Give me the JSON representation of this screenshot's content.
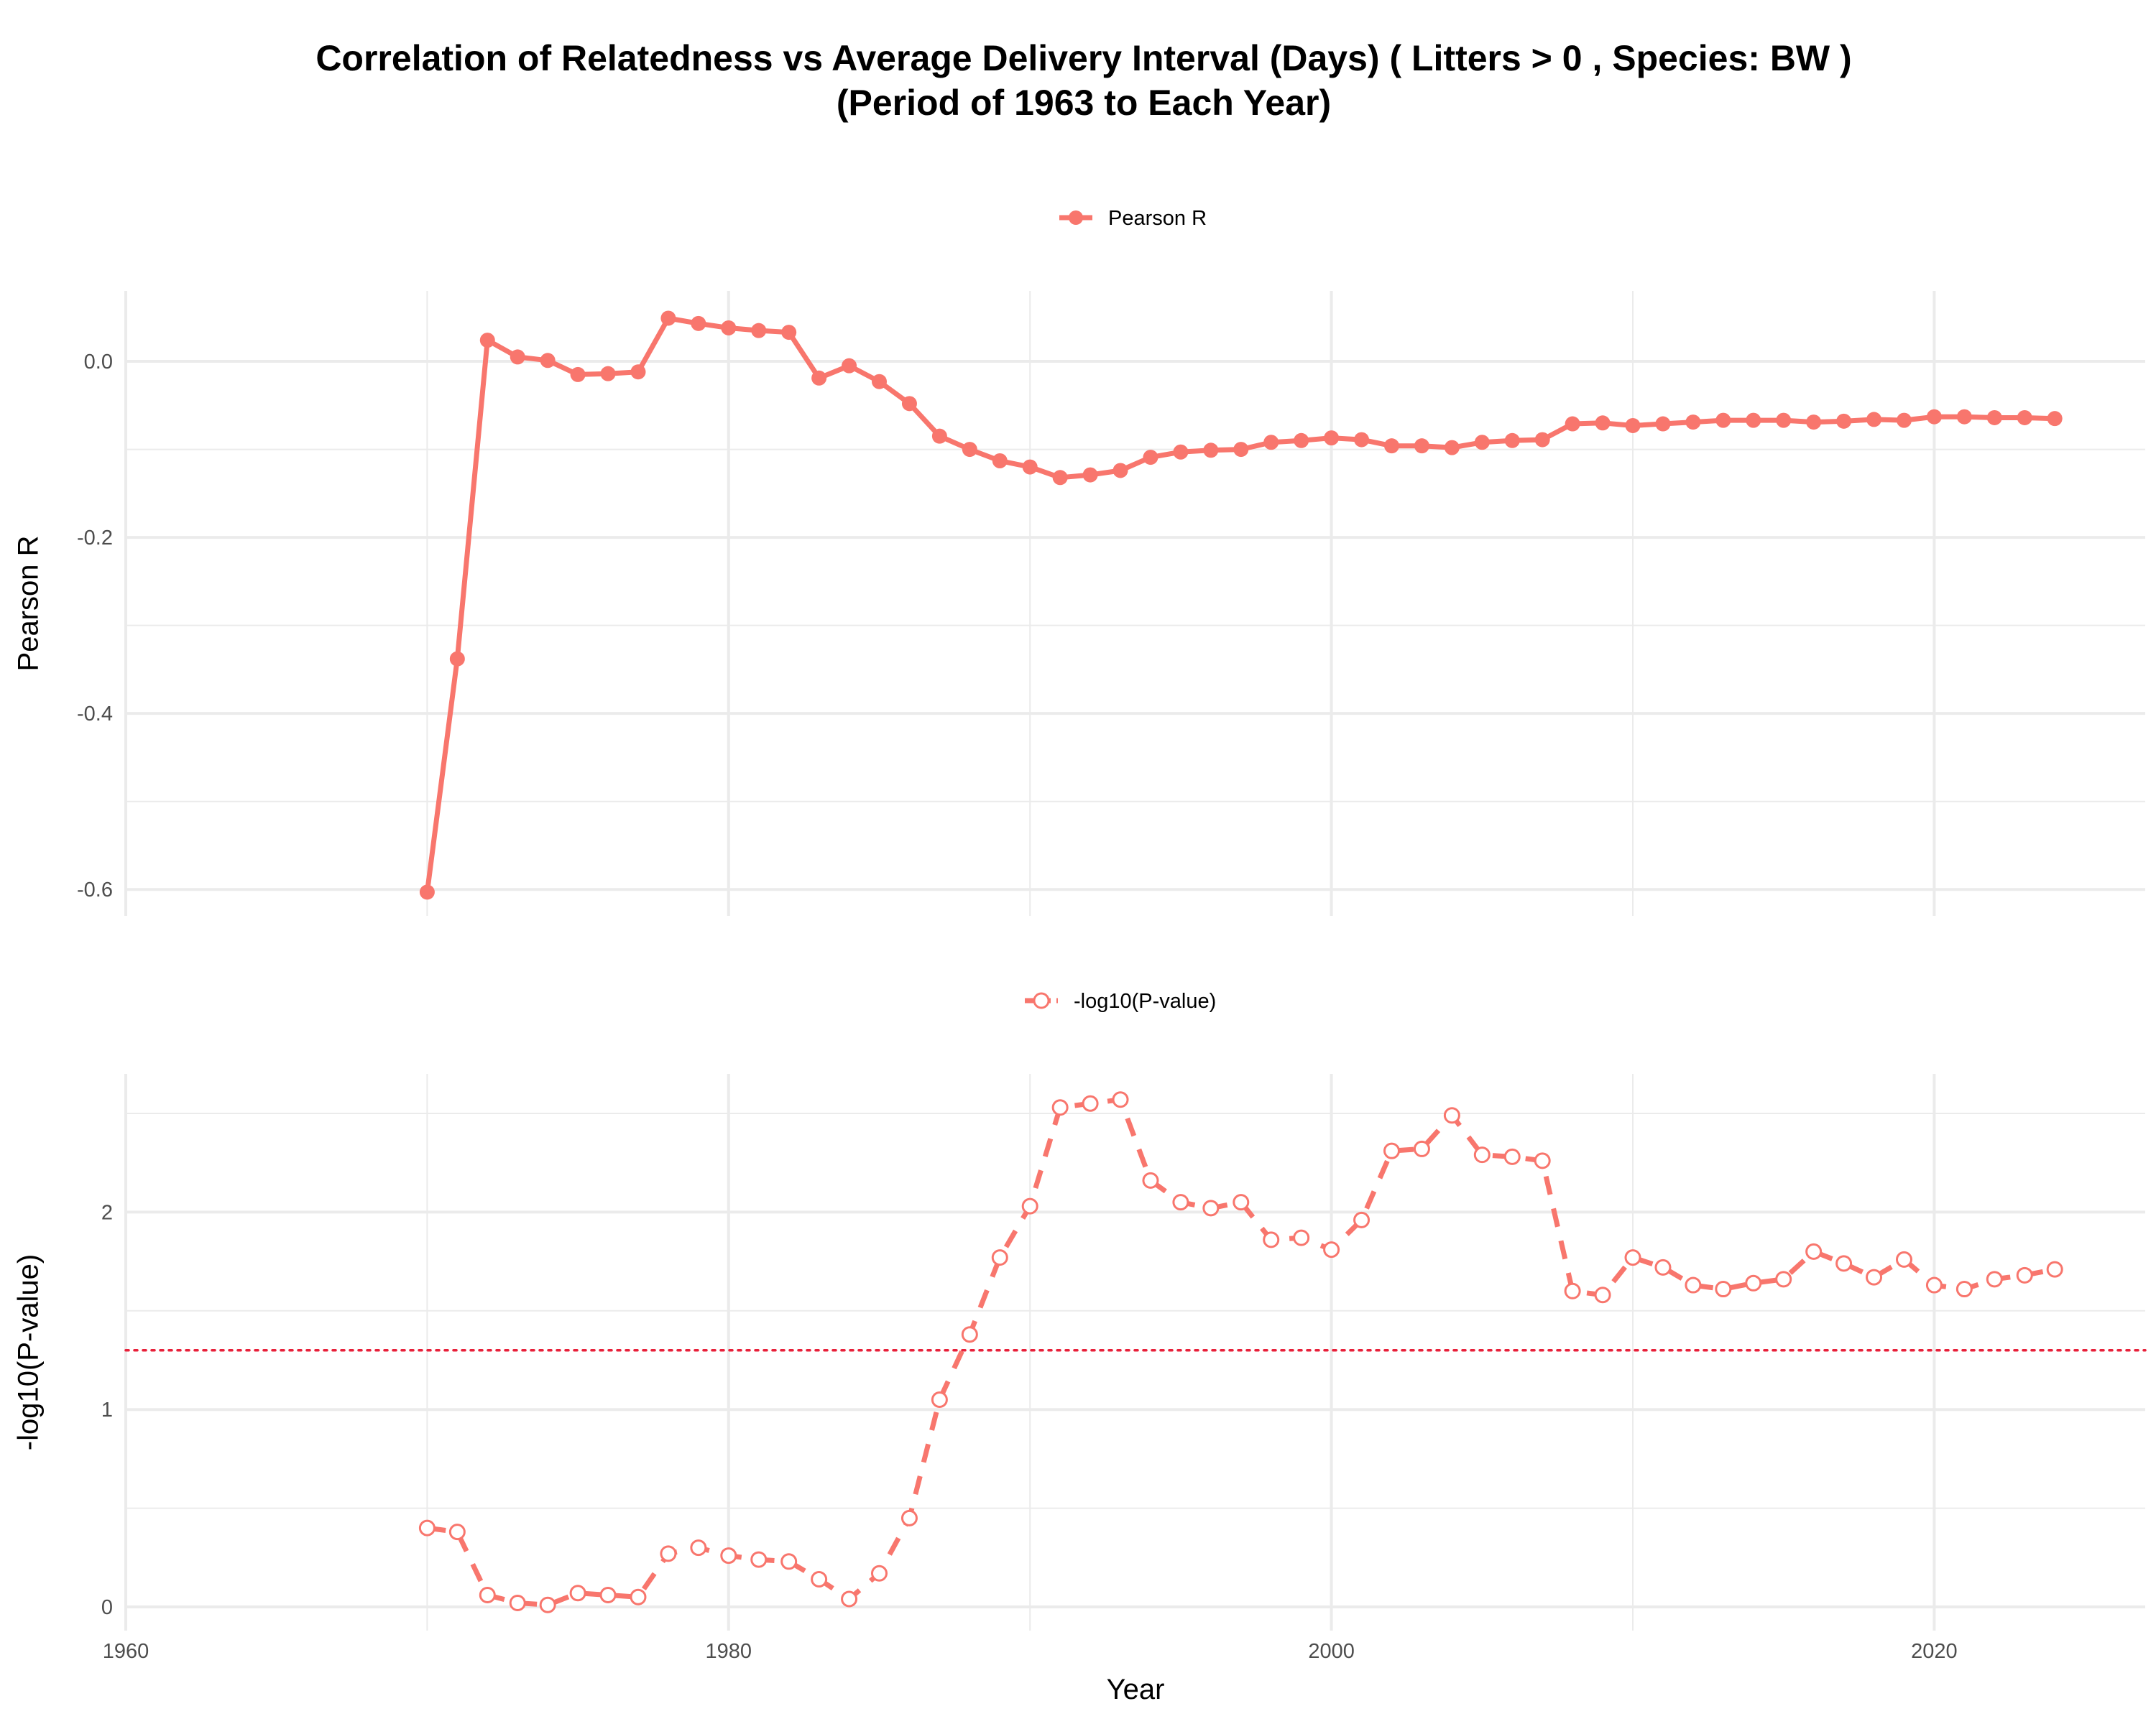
{
  "title_line1": "Correlation of Relatedness vs Average Delivery Interval (Days) ( Litters > 0 , Species: BW )",
  "title_line2": "(Period of 1963 to Each Year)",
  "colors": {
    "series": "#F8766D",
    "threshold": "#E8203A",
    "grid": "#EBEBEB"
  },
  "chart_data": [
    {
      "type": "line",
      "legend": "Pearson R",
      "legend_position": "top",
      "ylabel": "Pearson R",
      "xlabel": "",
      "xlim": [
        1960,
        2027
      ],
      "ylim": [
        -0.63,
        0.08
      ],
      "x_ticks": [
        1960,
        1980,
        2000,
        2020
      ],
      "y_ticks": [
        0.0,
        -0.2,
        -0.4,
        -0.6
      ],
      "y_tick_labels": [
        "0.0",
        "-0.2",
        "-0.4",
        "-0.6"
      ],
      "grid": true,
      "marker": "filled-circle",
      "linestyle": "solid",
      "x": [
        1970,
        1971,
        1972,
        1973,
        1974,
        1975,
        1976,
        1977,
        1978,
        1979,
        1980,
        1981,
        1982,
        1983,
        1984,
        1985,
        1986,
        1987,
        1988,
        1989,
        1990,
        1991,
        1992,
        1993,
        1994,
        1995,
        1996,
        1997,
        1998,
        1999,
        2000,
        2001,
        2002,
        2003,
        2004,
        2005,
        2006,
        2007,
        2008,
        2009,
        2010,
        2011,
        2012,
        2013,
        2014,
        2015,
        2016,
        2017,
        2018,
        2019,
        2020,
        2021,
        2022,
        2023,
        2024
      ],
      "y": [
        -0.603,
        -0.338,
        0.024,
        0.005,
        0.001,
        -0.015,
        -0.014,
        -0.012,
        0.049,
        0.043,
        0.038,
        0.035,
        0.033,
        -0.019,
        -0.005,
        -0.023,
        -0.048,
        -0.085,
        -0.1,
        -0.113,
        -0.12,
        -0.132,
        -0.129,
        -0.124,
        -0.109,
        -0.103,
        -0.101,
        -0.1,
        -0.092,
        -0.09,
        -0.087,
        -0.089,
        -0.096,
        -0.096,
        -0.098,
        -0.092,
        -0.09,
        -0.089,
        -0.071,
        -0.07,
        -0.073,
        -0.071,
        -0.069,
        -0.067,
        -0.067,
        -0.067,
        -0.069,
        -0.068,
        -0.066,
        -0.067,
        -0.063,
        -0.063,
        -0.064,
        -0.064,
        -0.065
      ]
    },
    {
      "type": "line",
      "legend": "-log10(P-value)",
      "legend_position": "top",
      "ylabel": "-log10(P-value)",
      "xlabel": "Year",
      "xlim": [
        1960,
        2027
      ],
      "ylim": [
        -0.12,
        2.7
      ],
      "x_ticks": [
        1960,
        1980,
        2000,
        2020
      ],
      "y_ticks": [
        0,
        1,
        2
      ],
      "y_tick_labels": [
        "0",
        "1",
        "2"
      ],
      "grid": true,
      "marker": "open-circle",
      "linestyle": "dashed",
      "threshold_y": 1.3,
      "x": [
        1970,
        1971,
        1972,
        1973,
        1974,
        1975,
        1976,
        1977,
        1978,
        1979,
        1980,
        1981,
        1982,
        1983,
        1984,
        1985,
        1986,
        1987,
        1988,
        1989,
        1990,
        1991,
        1992,
        1993,
        1994,
        1995,
        1996,
        1997,
        1998,
        1999,
        2000,
        2001,
        2002,
        2003,
        2004,
        2005,
        2006,
        2007,
        2008,
        2009,
        2010,
        2011,
        2012,
        2013,
        2014,
        2015,
        2016,
        2017,
        2018,
        2019,
        2020,
        2021,
        2022,
        2023,
        2024
      ],
      "y": [
        0.4,
        0.38,
        0.06,
        0.02,
        0.01,
        0.07,
        0.06,
        0.05,
        0.27,
        0.3,
        0.26,
        0.24,
        0.23,
        0.14,
        0.04,
        0.17,
        0.45,
        1.05,
        1.38,
        1.77,
        2.03,
        2.53,
        2.55,
        2.57,
        2.16,
        2.05,
        2.02,
        2.05,
        1.86,
        1.87,
        1.81,
        1.96,
        2.31,
        2.32,
        2.49,
        2.29,
        2.28,
        2.26,
        1.6,
        1.58,
        1.77,
        1.72,
        1.63,
        1.61,
        1.64,
        1.66,
        1.8,
        1.74,
        1.67,
        1.76,
        1.63,
        1.61,
        1.66,
        1.68,
        1.71
      ]
    }
  ]
}
